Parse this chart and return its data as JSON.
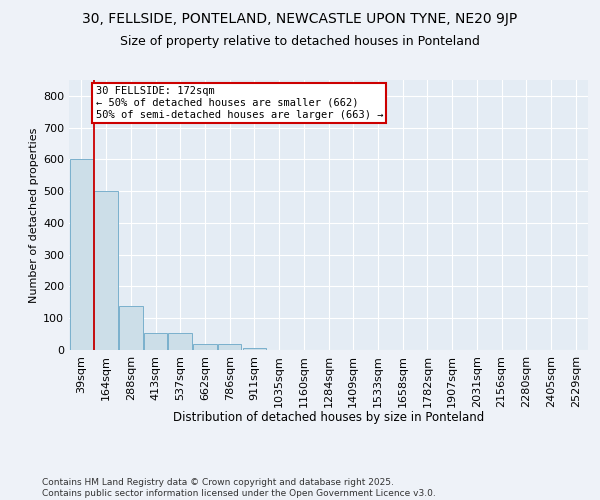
{
  "title": "30, FELLSIDE, PONTELAND, NEWCASTLE UPON TYNE, NE20 9JP",
  "subtitle": "Size of property relative to detached houses in Ponteland",
  "xlabel": "Distribution of detached houses by size in Ponteland",
  "ylabel": "Number of detached properties",
  "bar_values": [
    600,
    500,
    140,
    55,
    55,
    20,
    20,
    5,
    0,
    0,
    0,
    0,
    0,
    0,
    0,
    0,
    0,
    0,
    0,
    0,
    0
  ],
  "bin_labels": [
    "39sqm",
    "164sqm",
    "288sqm",
    "413sqm",
    "537sqm",
    "662sqm",
    "786sqm",
    "911sqm",
    "1035sqm",
    "1160sqm",
    "1284sqm",
    "1409sqm",
    "1533sqm",
    "1658sqm",
    "1782sqm",
    "1907sqm",
    "2031sqm",
    "2156sqm",
    "2280sqm",
    "2405sqm",
    "2529sqm"
  ],
  "bar_color": "#ccdee8",
  "bar_edgecolor": "#7ab0cc",
  "redline_bar_index": 1,
  "annotation_text": "30 FELLSIDE: 172sqm\n← 50% of detached houses are smaller (662)\n50% of semi-detached houses are larger (663) →",
  "annotation_box_color": "#ffffff",
  "annotation_border_color": "#cc0000",
  "ylim": [
    0,
    850
  ],
  "yticks": [
    0,
    100,
    200,
    300,
    400,
    500,
    600,
    700,
    800
  ],
  "background_color": "#eef2f8",
  "axes_background": "#e4ecf4",
  "grid_color": "#ffffff",
  "footer_text": "Contains HM Land Registry data © Crown copyright and database right 2025.\nContains public sector information licensed under the Open Government Licence v3.0.",
  "title_fontsize": 10,
  "subtitle_fontsize": 9,
  "xlabel_fontsize": 8.5,
  "ylabel_fontsize": 8,
  "tick_fontsize": 8,
  "annotation_fontsize": 7.5
}
